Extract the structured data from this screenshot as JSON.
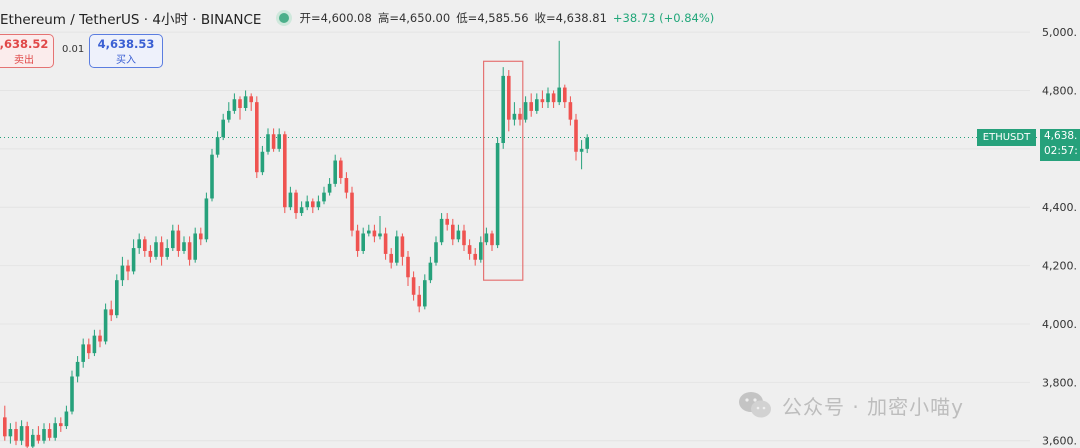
{
  "header": {
    "symbol": "Ethereum / TetherUS · 4小时 · BINANCE",
    "open": "开=4,600.08",
    "high": "高=4,650.00",
    "low": "低=4,585.56",
    "close": "收=4,638.81",
    "change": "+38.73 (+0.84%)"
  },
  "trade": {
    "sell_price": ",638.52",
    "sell_label": "卖出",
    "spread": "0.01",
    "buy_price": "4,638.53",
    "buy_label": "买入"
  },
  "price_tag": {
    "symbol": "ETHUSDT",
    "price": "4,638.",
    "countdown": "02:57:"
  },
  "watermark": "公众号 · 加密小喵y",
  "colors": {
    "up": "#26a17b",
    "down": "#ef5350",
    "highlight": "#e57373"
  },
  "chart_data": {
    "type": "candlestick",
    "y_ticks": [
      "3,600.",
      "3,800.",
      "4,000.",
      "4,200.",
      "4,400.",
      "4,600.",
      "4,800.",
      "5,000."
    ],
    "y_range": [
      3575,
      5110
    ],
    "last_price": 4638.8,
    "highlight_box": {
      "price_low": 4150,
      "price_high": 4900
    },
    "candles": [
      [
        3680,
        3615,
        3720,
        3600
      ],
      [
        3615,
        3640,
        3660,
        3590
      ],
      [
        3640,
        3600,
        3665,
        3585
      ],
      [
        3600,
        3650,
        3670,
        3585
      ],
      [
        3650,
        3580,
        3665,
        3560
      ],
      [
        3580,
        3620,
        3640,
        3565
      ],
      [
        3620,
        3600,
        3650,
        3590
      ],
      [
        3600,
        3640,
        3660,
        3590
      ],
      [
        3640,
        3610,
        3660,
        3600
      ],
      [
        3610,
        3660,
        3680,
        3600
      ],
      [
        3660,
        3650,
        3680,
        3630
      ],
      [
        3650,
        3700,
        3720,
        3640
      ],
      [
        3700,
        3820,
        3840,
        3690
      ],
      [
        3820,
        3870,
        3890,
        3800
      ],
      [
        3870,
        3930,
        3950,
        3850
      ],
      [
        3930,
        3900,
        3950,
        3880
      ],
      [
        3900,
        3960,
        3980,
        3890
      ],
      [
        3960,
        3940,
        3980,
        3920
      ],
      [
        3940,
        4050,
        4070,
        3930
      ],
      [
        4050,
        4030,
        4080,
        4010
      ],
      [
        4030,
        4150,
        4170,
        4020
      ],
      [
        4150,
        4200,
        4230,
        4130
      ],
      [
        4200,
        4180,
        4220,
        4150
      ],
      [
        4180,
        4260,
        4290,
        4170
      ],
      [
        4260,
        4290,
        4310,
        4240
      ],
      [
        4290,
        4250,
        4300,
        4230
      ],
      [
        4250,
        4230,
        4270,
        4210
      ],
      [
        4230,
        4280,
        4300,
        4220
      ],
      [
        4280,
        4230,
        4300,
        4200
      ],
      [
        4230,
        4260,
        4290,
        4220
      ],
      [
        4260,
        4320,
        4340,
        4250
      ],
      [
        4320,
        4250,
        4340,
        4230
      ],
      [
        4250,
        4280,
        4300,
        4240
      ],
      [
        4280,
        4220,
        4300,
        4200
      ],
      [
        4220,
        4310,
        4330,
        4210
      ],
      [
        4310,
        4290,
        4330,
        4270
      ],
      [
        4290,
        4430,
        4450,
        4280
      ],
      [
        4430,
        4580,
        4600,
        4420
      ],
      [
        4580,
        4640,
        4660,
        4570
      ],
      [
        4640,
        4700,
        4720,
        4630
      ],
      [
        4700,
        4730,
        4760,
        4690
      ],
      [
        4730,
        4770,
        4790,
        4720
      ],
      [
        4770,
        4740,
        4780,
        4700
      ],
      [
        4740,
        4780,
        4800,
        4730
      ],
      [
        4780,
        4760,
        4790,
        4730
      ],
      [
        4760,
        4520,
        4780,
        4500
      ],
      [
        4520,
        4590,
        4610,
        4510
      ],
      [
        4590,
        4650,
        4670,
        4580
      ],
      [
        4650,
        4600,
        4670,
        4590
      ],
      [
        4600,
        4650,
        4670,
        4590
      ],
      [
        4650,
        4400,
        4660,
        4380
      ],
      [
        4400,
        4450,
        4470,
        4390
      ],
      [
        4450,
        4380,
        4460,
        4360
      ],
      [
        4380,
        4400,
        4420,
        4370
      ],
      [
        4400,
        4420,
        4440,
        4390
      ],
      [
        4420,
        4400,
        4430,
        4380
      ],
      [
        4400,
        4420,
        4440,
        4390
      ],
      [
        4420,
        4450,
        4470,
        4410
      ],
      [
        4450,
        4480,
        4500,
        4440
      ],
      [
        4480,
        4560,
        4580,
        4470
      ],
      [
        4560,
        4500,
        4570,
        4480
      ],
      [
        4500,
        4450,
        4520,
        4430
      ],
      [
        4450,
        4320,
        4470,
        4300
      ],
      [
        4320,
        4250,
        4340,
        4230
      ],
      [
        4250,
        4310,
        4330,
        4240
      ],
      [
        4310,
        4320,
        4340,
        4300
      ],
      [
        4320,
        4300,
        4340,
        4280
      ],
      [
        4300,
        4310,
        4370,
        4290
      ],
      [
        4310,
        4240,
        4330,
        4220
      ],
      [
        4240,
        4210,
        4260,
        4190
      ],
      [
        4210,
        4300,
        4320,
        4200
      ],
      [
        4300,
        4230,
        4310,
        4200
      ],
      [
        4230,
        4160,
        4250,
        4130
      ],
      [
        4160,
        4100,
        4180,
        4080
      ],
      [
        4100,
        4060,
        4130,
        4040
      ],
      [
        4060,
        4150,
        4170,
        4050
      ],
      [
        4150,
        4210,
        4230,
        4140
      ],
      [
        4210,
        4280,
        4300,
        4200
      ],
      [
        4280,
        4360,
        4380,
        4270
      ],
      [
        4360,
        4340,
        4380,
        4320
      ],
      [
        4340,
        4290,
        4360,
        4270
      ],
      [
        4290,
        4320,
        4340,
        4280
      ],
      [
        4320,
        4270,
        4340,
        4250
      ],
      [
        4270,
        4240,
        4290,
        4220
      ],
      [
        4240,
        4220,
        4260,
        4200
      ],
      [
        4220,
        4280,
        4300,
        4210
      ],
      [
        4280,
        4310,
        4330,
        4270
      ],
      [
        4310,
        4270,
        4320,
        4250
      ],
      [
        4270,
        4620,
        4640,
        4260
      ],
      [
        4620,
        4850,
        4880,
        4600
      ],
      [
        4850,
        4700,
        4870,
        4660
      ],
      [
        4700,
        4720,
        4760,
        4680
      ],
      [
        4720,
        4700,
        4740,
        4680
      ],
      [
        4700,
        4760,
        4780,
        4690
      ],
      [
        4760,
        4730,
        4790,
        4710
      ],
      [
        4730,
        4770,
        4790,
        4720
      ],
      [
        4770,
        4760,
        4800,
        4740
      ],
      [
        4760,
        4790,
        4810,
        4740
      ],
      [
        4790,
        4760,
        4800,
        4740
      ],
      [
        4760,
        4810,
        4970,
        4750
      ],
      [
        4810,
        4760,
        4820,
        4740
      ],
      [
        4760,
        4700,
        4780,
        4680
      ],
      [
        4700,
        4590,
        4720,
        4560
      ],
      [
        4590,
        4600,
        4630,
        4530
      ],
      [
        4600,
        4638.8,
        4650,
        4585.6
      ]
    ]
  }
}
